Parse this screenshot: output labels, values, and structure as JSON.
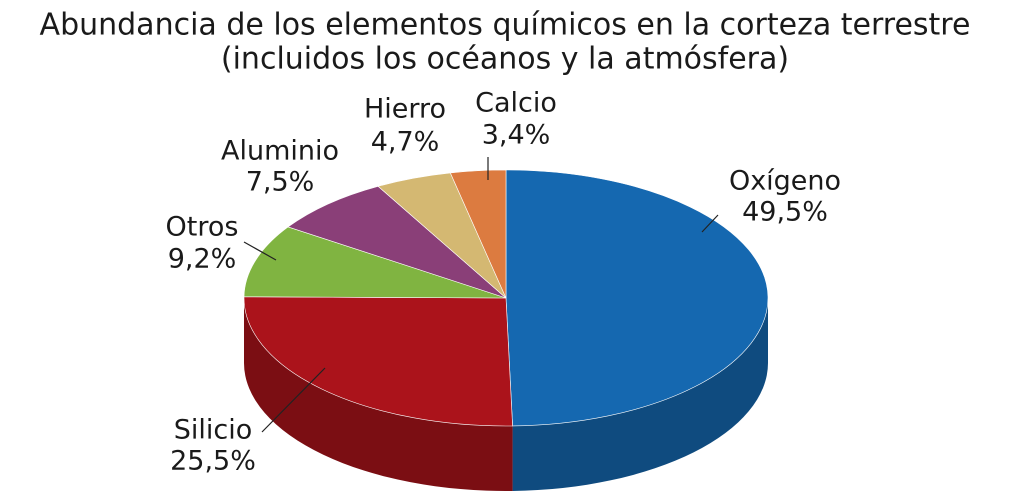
{
  "chart_data": {
    "type": "pie",
    "title": "Abundancia de los elementos químicos en la corteza terrestre",
    "subtitle": "(incluidos los océanos y la atmósfera)",
    "categories": [
      "Oxígeno",
      "Silicio",
      "Otros",
      "Aluminio",
      "Hierro",
      "Calcio"
    ],
    "values": [
      49.5,
      25.5,
      9.2,
      7.5,
      4.7,
      3.4
    ],
    "value_labels": [
      "49,5%",
      "25,5%",
      "9,2%",
      "7,5%",
      "4,7%",
      "3,4%"
    ],
    "colors": [
      "#1568b0",
      "#ab131b",
      "#80b441",
      "#8a3f78",
      "#d4b872",
      "#dc7b40"
    ]
  }
}
